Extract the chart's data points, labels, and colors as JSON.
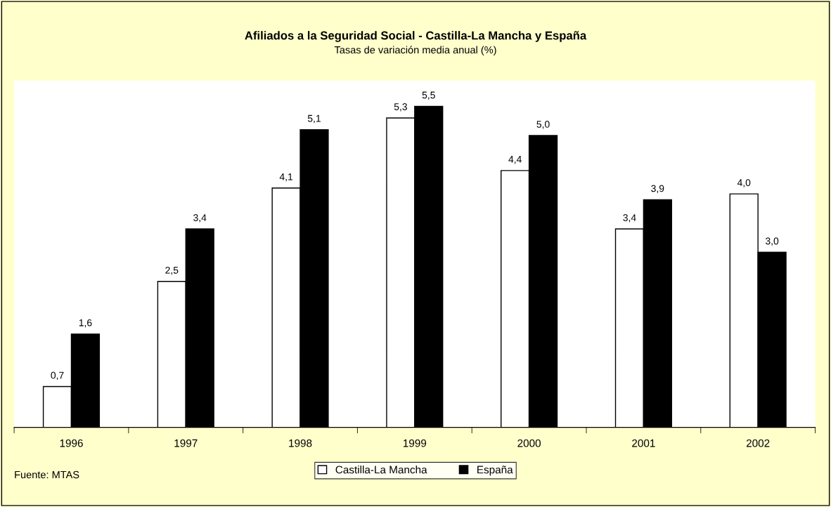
{
  "chart_data": {
    "type": "bar",
    "title": "Afiliados a la Seguridad Social - Castilla-La Mancha y España",
    "subtitle": "Tasas de variación media anual (%)",
    "categories": [
      "1996",
      "1997",
      "1998",
      "1999",
      "2000",
      "2001",
      "2002"
    ],
    "series": [
      {
        "name": "Castilla-La Mancha",
        "color": "#ffffff",
        "values": [
          0.7,
          2.5,
          4.1,
          5.3,
          4.4,
          3.4,
          4.0
        ],
        "value_labels": [
          "0,7",
          "2,5",
          "4,1",
          "5,3",
          "4,4",
          "3,4",
          "4,0"
        ]
      },
      {
        "name": "España",
        "color": "#000000",
        "values": [
          1.6,
          3.4,
          5.1,
          5.5,
          5.0,
          3.9,
          3.0
        ],
        "value_labels": [
          "1,6",
          "3,4",
          "5,1",
          "5,5",
          "5,0",
          "3,9",
          "3,0"
        ]
      }
    ],
    "tick_labels": "x",
    "grid": false,
    "legend": "bottom",
    "annotations": [
      "Fuente: MTAS"
    ]
  }
}
